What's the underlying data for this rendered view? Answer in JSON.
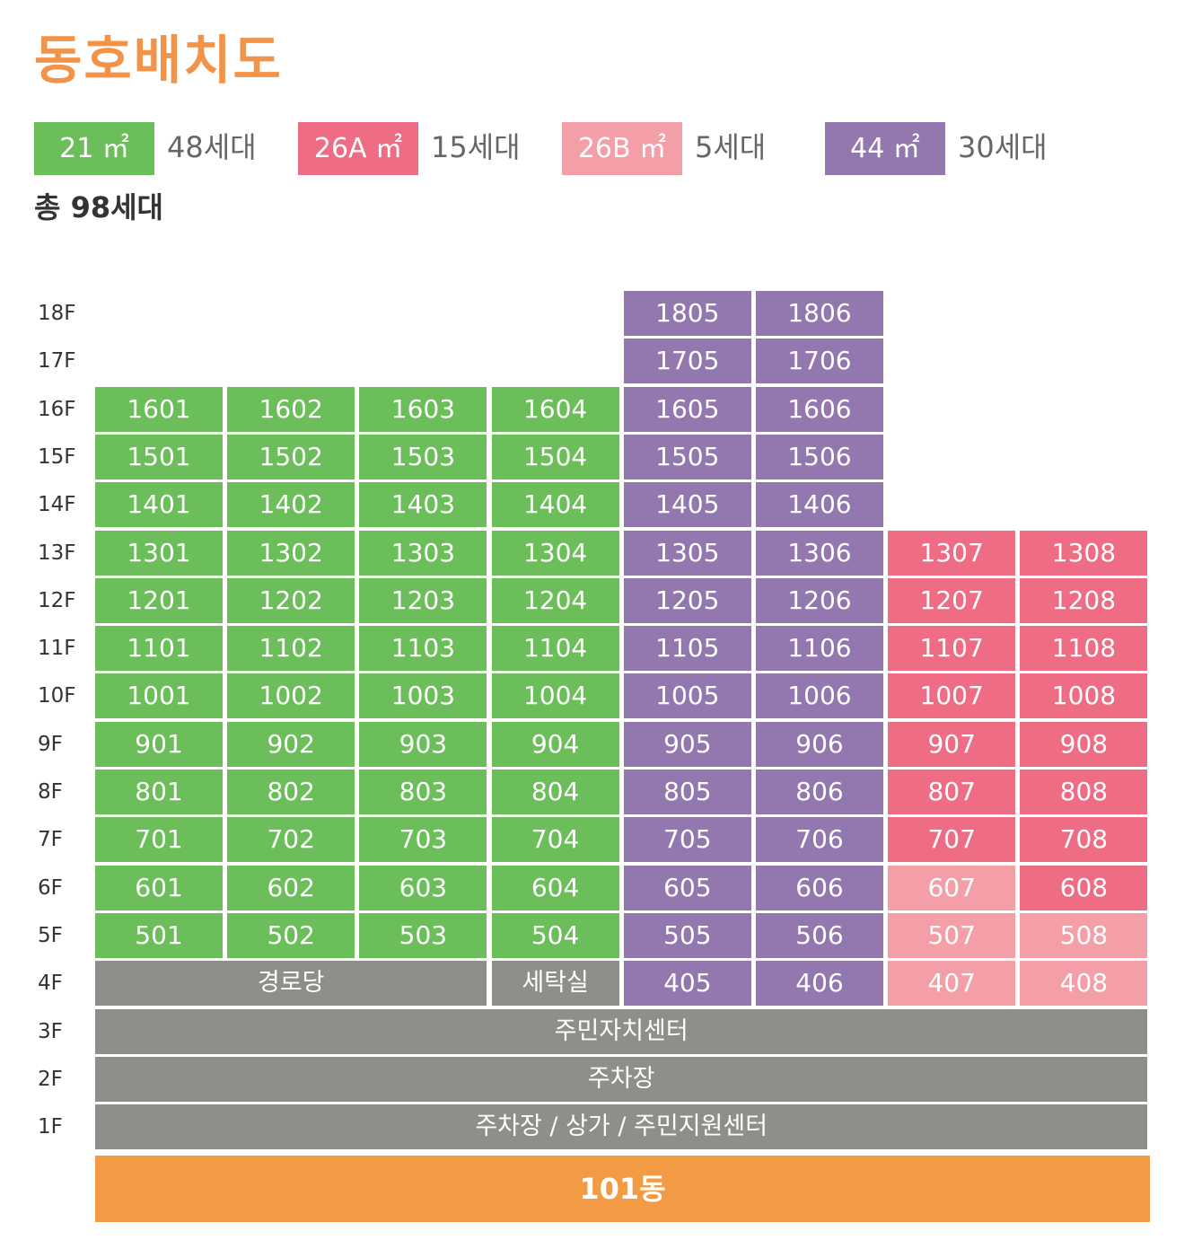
{
  "title": "동호배치도",
  "legend": [
    {
      "label": "21 ㎡",
      "count": "48세대",
      "color": "#6bbe5a"
    },
    {
      "label": "26A ㎡",
      "count": "15세대",
      "color": "#ee6d85"
    },
    {
      "label": "26B ㎡",
      "count": "5세대",
      "color": "#f49fa7"
    },
    {
      "label": "44 ㎡",
      "count": "30세대",
      "color": "#9278af"
    }
  ],
  "total": "총 98세대",
  "floors": [
    "18F",
    "17F",
    "16F",
    "15F",
    "14F",
    "13F",
    "12F",
    "11F",
    "10F",
    "9F",
    "8F",
    "7F",
    "6F",
    "5F",
    "4F",
    "3F",
    "2F",
    "1F"
  ],
  "units": [
    {
      "floor": "18F",
      "units": [
        {
          "col": 5,
          "label": "1805",
          "type": "44"
        },
        {
          "col": 6,
          "label": "1806",
          "type": "44"
        }
      ]
    },
    {
      "floor": "17F",
      "units": [
        {
          "col": 5,
          "label": "1705",
          "type": "44"
        },
        {
          "col": 6,
          "label": "1706",
          "type": "44"
        }
      ]
    },
    {
      "floor": "16F",
      "units": [
        {
          "col": 1,
          "label": "1601",
          "type": "21"
        },
        {
          "col": 2,
          "label": "1602",
          "type": "21"
        },
        {
          "col": 3,
          "label": "1603",
          "type": "21"
        },
        {
          "col": 4,
          "label": "1604",
          "type": "21"
        },
        {
          "col": 5,
          "label": "1605",
          "type": "44"
        },
        {
          "col": 6,
          "label": "1606",
          "type": "44"
        }
      ]
    },
    {
      "floor": "15F",
      "units": [
        {
          "col": 1,
          "label": "1501",
          "type": "21"
        },
        {
          "col": 2,
          "label": "1502",
          "type": "21"
        },
        {
          "col": 3,
          "label": "1503",
          "type": "21"
        },
        {
          "col": 4,
          "label": "1504",
          "type": "21"
        },
        {
          "col": 5,
          "label": "1505",
          "type": "44"
        },
        {
          "col": 6,
          "label": "1506",
          "type": "44"
        }
      ]
    },
    {
      "floor": "14F",
      "units": [
        {
          "col": 1,
          "label": "1401",
          "type": "21"
        },
        {
          "col": 2,
          "label": "1402",
          "type": "21"
        },
        {
          "col": 3,
          "label": "1403",
          "type": "21"
        },
        {
          "col": 4,
          "label": "1404",
          "type": "21"
        },
        {
          "col": 5,
          "label": "1405",
          "type": "44"
        },
        {
          "col": 6,
          "label": "1406",
          "type": "44"
        }
      ]
    },
    {
      "floor": "13F",
      "units": [
        {
          "col": 1,
          "label": "1301",
          "type": "21"
        },
        {
          "col": 2,
          "label": "1302",
          "type": "21"
        },
        {
          "col": 3,
          "label": "1303",
          "type": "21"
        },
        {
          "col": 4,
          "label": "1304",
          "type": "21"
        },
        {
          "col": 5,
          "label": "1305",
          "type": "44"
        },
        {
          "col": 6,
          "label": "1306",
          "type": "44"
        },
        {
          "col": 7,
          "label": "1307",
          "type": "26A"
        },
        {
          "col": 8,
          "label": "1308",
          "type": "26A"
        }
      ]
    },
    {
      "floor": "12F",
      "units": [
        {
          "col": 1,
          "label": "1201",
          "type": "21"
        },
        {
          "col": 2,
          "label": "1202",
          "type": "21"
        },
        {
          "col": 3,
          "label": "1203",
          "type": "21"
        },
        {
          "col": 4,
          "label": "1204",
          "type": "21"
        },
        {
          "col": 5,
          "label": "1205",
          "type": "44"
        },
        {
          "col": 6,
          "label": "1206",
          "type": "44"
        },
        {
          "col": 7,
          "label": "1207",
          "type": "26A"
        },
        {
          "col": 8,
          "label": "1208",
          "type": "26A"
        }
      ]
    },
    {
      "floor": "11F",
      "units": [
        {
          "col": 1,
          "label": "1101",
          "type": "21"
        },
        {
          "col": 2,
          "label": "1102",
          "type": "21"
        },
        {
          "col": 3,
          "label": "1103",
          "type": "21"
        },
        {
          "col": 4,
          "label": "1104",
          "type": "21"
        },
        {
          "col": 5,
          "label": "1105",
          "type": "44"
        },
        {
          "col": 6,
          "label": "1106",
          "type": "44"
        },
        {
          "col": 7,
          "label": "1107",
          "type": "26A"
        },
        {
          "col": 8,
          "label": "1108",
          "type": "26A"
        }
      ]
    },
    {
      "floor": "10F",
      "units": [
        {
          "col": 1,
          "label": "1001",
          "type": "21"
        },
        {
          "col": 2,
          "label": "1002",
          "type": "21"
        },
        {
          "col": 3,
          "label": "1003",
          "type": "21"
        },
        {
          "col": 4,
          "label": "1004",
          "type": "21"
        },
        {
          "col": 5,
          "label": "1005",
          "type": "44"
        },
        {
          "col": 6,
          "label": "1006",
          "type": "44"
        },
        {
          "col": 7,
          "label": "1007",
          "type": "26A"
        },
        {
          "col": 8,
          "label": "1008",
          "type": "26A"
        }
      ]
    },
    {
      "floor": "9F",
      "units": [
        {
          "col": 1,
          "label": "901",
          "type": "21"
        },
        {
          "col": 2,
          "label": "902",
          "type": "21"
        },
        {
          "col": 3,
          "label": "903",
          "type": "21"
        },
        {
          "col": 4,
          "label": "904",
          "type": "21"
        },
        {
          "col": 5,
          "label": "905",
          "type": "44"
        },
        {
          "col": 6,
          "label": "906",
          "type": "44"
        },
        {
          "col": 7,
          "label": "907",
          "type": "26A"
        },
        {
          "col": 8,
          "label": "908",
          "type": "26A"
        }
      ]
    },
    {
      "floor": "8F",
      "units": [
        {
          "col": 1,
          "label": "801",
          "type": "21"
        },
        {
          "col": 2,
          "label": "802",
          "type": "21"
        },
        {
          "col": 3,
          "label": "803",
          "type": "21"
        },
        {
          "col": 4,
          "label": "804",
          "type": "21"
        },
        {
          "col": 5,
          "label": "805",
          "type": "44"
        },
        {
          "col": 6,
          "label": "806",
          "type": "44"
        },
        {
          "col": 7,
          "label": "807",
          "type": "26A"
        },
        {
          "col": 8,
          "label": "808",
          "type": "26A"
        }
      ]
    },
    {
      "floor": "7F",
      "units": [
        {
          "col": 1,
          "label": "701",
          "type": "21"
        },
        {
          "col": 2,
          "label": "702",
          "type": "21"
        },
        {
          "col": 3,
          "label": "703",
          "type": "21"
        },
        {
          "col": 4,
          "label": "704",
          "type": "21"
        },
        {
          "col": 5,
          "label": "705",
          "type": "44"
        },
        {
          "col": 6,
          "label": "706",
          "type": "44"
        },
        {
          "col": 7,
          "label": "707",
          "type": "26A"
        },
        {
          "col": 8,
          "label": "708",
          "type": "26A"
        }
      ]
    },
    {
      "floor": "6F",
      "units": [
        {
          "col": 1,
          "label": "601",
          "type": "21"
        },
        {
          "col": 2,
          "label": "602",
          "type": "21"
        },
        {
          "col": 3,
          "label": "603",
          "type": "21"
        },
        {
          "col": 4,
          "label": "604",
          "type": "21"
        },
        {
          "col": 5,
          "label": "605",
          "type": "44"
        },
        {
          "col": 6,
          "label": "606",
          "type": "44"
        },
        {
          "col": 7,
          "label": "607",
          "type": "26B"
        },
        {
          "col": 8,
          "label": "608",
          "type": "26A"
        }
      ]
    },
    {
      "floor": "5F",
      "units": [
        {
          "col": 1,
          "label": "501",
          "type": "21"
        },
        {
          "col": 2,
          "label": "502",
          "type": "21"
        },
        {
          "col": 3,
          "label": "503",
          "type": "21"
        },
        {
          "col": 4,
          "label": "504",
          "type": "21"
        },
        {
          "col": 5,
          "label": "505",
          "type": "44"
        },
        {
          "col": 6,
          "label": "506",
          "type": "44"
        },
        {
          "col": 7,
          "label": "507",
          "type": "26B"
        },
        {
          "col": 8,
          "label": "508",
          "type": "26B"
        }
      ]
    },
    {
      "floor": "4F",
      "units": [
        {
          "col": 1,
          "span": 3,
          "label": "경로당",
          "type": "facility"
        },
        {
          "col": 4,
          "label": "세탁실",
          "type": "facility"
        },
        {
          "col": 5,
          "label": "405",
          "type": "44"
        },
        {
          "col": 6,
          "label": "406",
          "type": "44"
        },
        {
          "col": 7,
          "label": "407",
          "type": "26B"
        },
        {
          "col": 8,
          "label": "408",
          "type": "26B"
        }
      ]
    },
    {
      "floor": "3F",
      "units": [
        {
          "col": 1,
          "span": 8,
          "label": "주민자치센터",
          "type": "facility"
        }
      ]
    },
    {
      "floor": "2F",
      "units": [
        {
          "col": 1,
          "span": 8,
          "label": "주차장",
          "type": "facility"
        }
      ]
    },
    {
      "floor": "1F",
      "units": [
        {
          "col": 1,
          "span": 8,
          "label": "주차장 / 상가 / 주민지원센터",
          "type": "facility"
        }
      ]
    }
  ],
  "building": "101동"
}
